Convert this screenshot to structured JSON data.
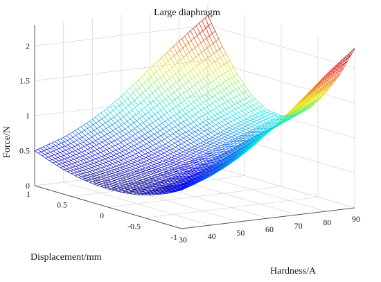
{
  "chart_data": {
    "type": "surface-3d-mesh",
    "title": "Large diaphragm",
    "xlabel": "Hardness/A",
    "ylabel": "Displacement/mm",
    "zlabel": "Force/N",
    "x_ticks": [
      "30",
      "40",
      "50",
      "60",
      "70",
      "80",
      "90"
    ],
    "y_ticks": [
      "-1",
      "-0.5",
      "0",
      "0.5",
      "1"
    ],
    "z_ticks": [
      "0",
      "0.5",
      "1",
      "1.5",
      "2"
    ],
    "xlim": [
      30,
      90
    ],
    "ylim": [
      -1,
      1
    ],
    "zlim": [
      0,
      2.3
    ],
    "grid": true,
    "colormap": "jet",
    "surface": {
      "hardness": [
        30,
        35,
        40,
        45,
        50,
        55,
        60,
        65,
        70,
        75,
        80,
        85,
        90
      ],
      "displacement": [
        -1,
        -0.8,
        -0.6,
        -0.4,
        -0.2,
        0,
        0.2,
        0.4,
        0.6,
        0.8,
        1
      ],
      "force": [
        [
          0.55,
          0.44,
          0.36,
          0.3,
          0.27,
          0.26,
          0.27,
          0.3,
          0.35,
          0.42,
          0.5
        ],
        [
          0.62,
          0.5,
          0.41,
          0.34,
          0.3,
          0.29,
          0.3,
          0.33,
          0.39,
          0.47,
          0.57
        ],
        [
          0.7,
          0.57,
          0.46,
          0.38,
          0.34,
          0.32,
          0.34,
          0.37,
          0.44,
          0.53,
          0.64
        ],
        [
          0.8,
          0.65,
          0.53,
          0.44,
          0.38,
          0.36,
          0.38,
          0.42,
          0.5,
          0.61,
          0.74
        ],
        [
          0.92,
          0.75,
          0.61,
          0.5,
          0.44,
          0.41,
          0.43,
          0.48,
          0.57,
          0.7,
          0.85
        ],
        [
          1.06,
          0.86,
          0.7,
          0.58,
          0.5,
          0.47,
          0.49,
          0.55,
          0.66,
          0.8,
          0.98
        ],
        [
          1.22,
          0.99,
          0.81,
          0.67,
          0.58,
          0.54,
          0.56,
          0.63,
          0.76,
          0.93,
          1.13
        ],
        [
          1.4,
          1.14,
          0.93,
          0.77,
          0.66,
          0.62,
          0.64,
          0.73,
          0.87,
          1.07,
          1.3
        ],
        [
          1.58,
          1.29,
          1.05,
          0.87,
          0.75,
          0.7,
          0.72,
          0.82,
          0.98,
          1.21,
          1.48
        ],
        [
          1.76,
          1.43,
          1.17,
          0.97,
          0.84,
          0.78,
          0.81,
          0.92,
          1.1,
          1.35,
          1.65
        ],
        [
          1.95,
          1.58,
          1.29,
          1.07,
          0.92,
          0.86,
          0.89,
          1.01,
          1.21,
          1.49,
          1.82
        ],
        [
          2.12,
          1.72,
          1.4,
          1.16,
          1.0,
          0.94,
          0.97,
          1.1,
          1.32,
          1.62,
          1.98
        ],
        [
          2.28,
          1.85,
          1.51,
          1.25,
          1.08,
          1.01,
          1.04,
          1.18,
          1.42,
          1.75,
          2.14
        ]
      ]
    }
  }
}
